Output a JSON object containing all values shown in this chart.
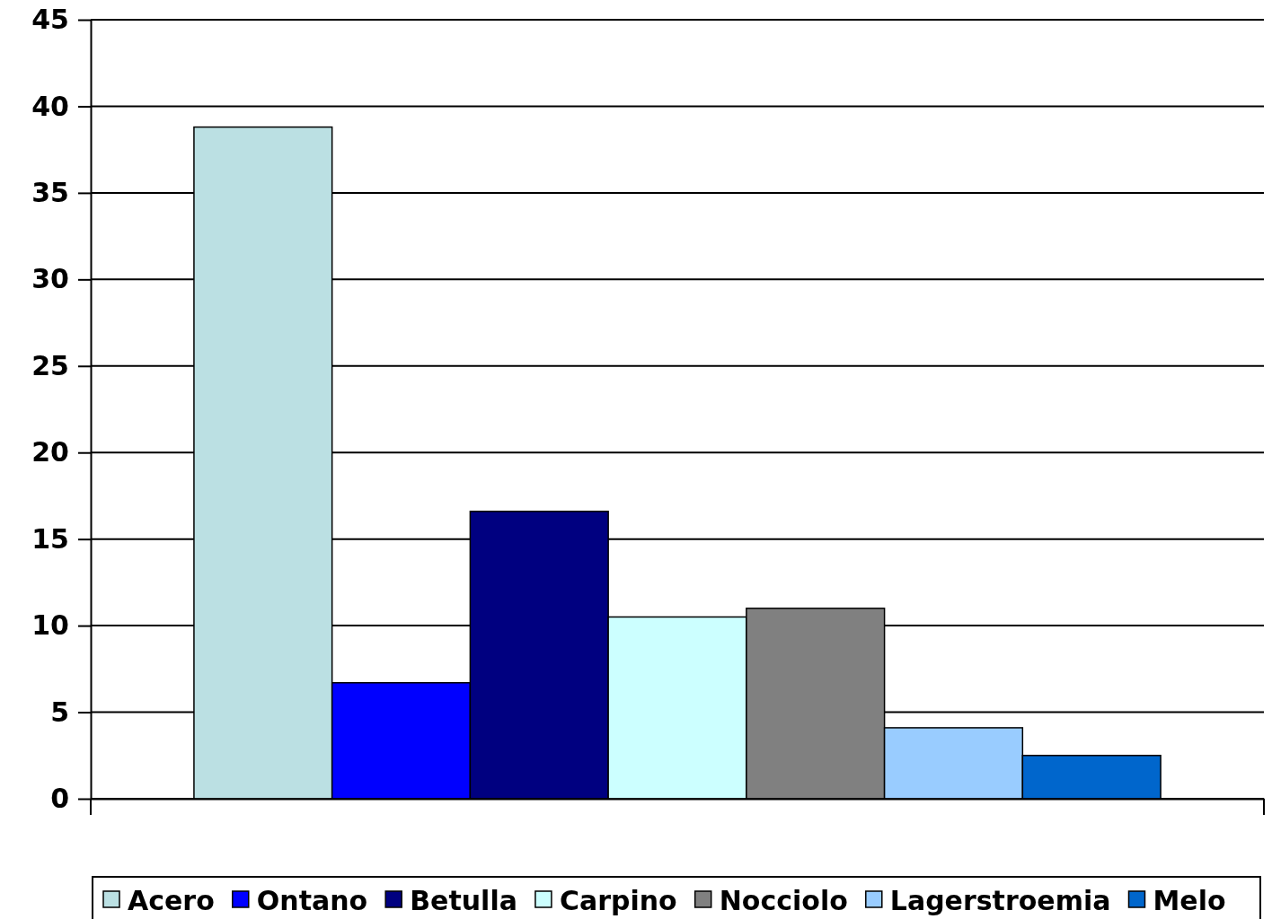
{
  "chart_data": {
    "type": "bar",
    "categories": [
      null
    ],
    "series": [
      {
        "name": "Acero",
        "color": "#bbe0e3",
        "values": [
          38.8
        ]
      },
      {
        "name": "Ontano",
        "color": "#0000ff",
        "values": [
          6.7
        ]
      },
      {
        "name": "Betulla",
        "color": "#000080",
        "values": [
          16.6
        ]
      },
      {
        "name": "Carpino",
        "color": "#ccffff",
        "values": [
          10.5
        ]
      },
      {
        "name": "Nocciolo",
        "color": "#808080",
        "values": [
          11.0
        ]
      },
      {
        "name": "Lagerstroemia",
        "color": "#99ccff",
        "values": [
          4.1
        ]
      },
      {
        "name": "Melo",
        "color": "#0066cc",
        "values": [
          2.5
        ]
      }
    ],
    "ylim": [
      0,
      45
    ],
    "yticks": [
      0,
      5,
      10,
      15,
      20,
      25,
      30,
      35,
      40,
      45
    ],
    "grid": "y",
    "legend": "bottom"
  }
}
